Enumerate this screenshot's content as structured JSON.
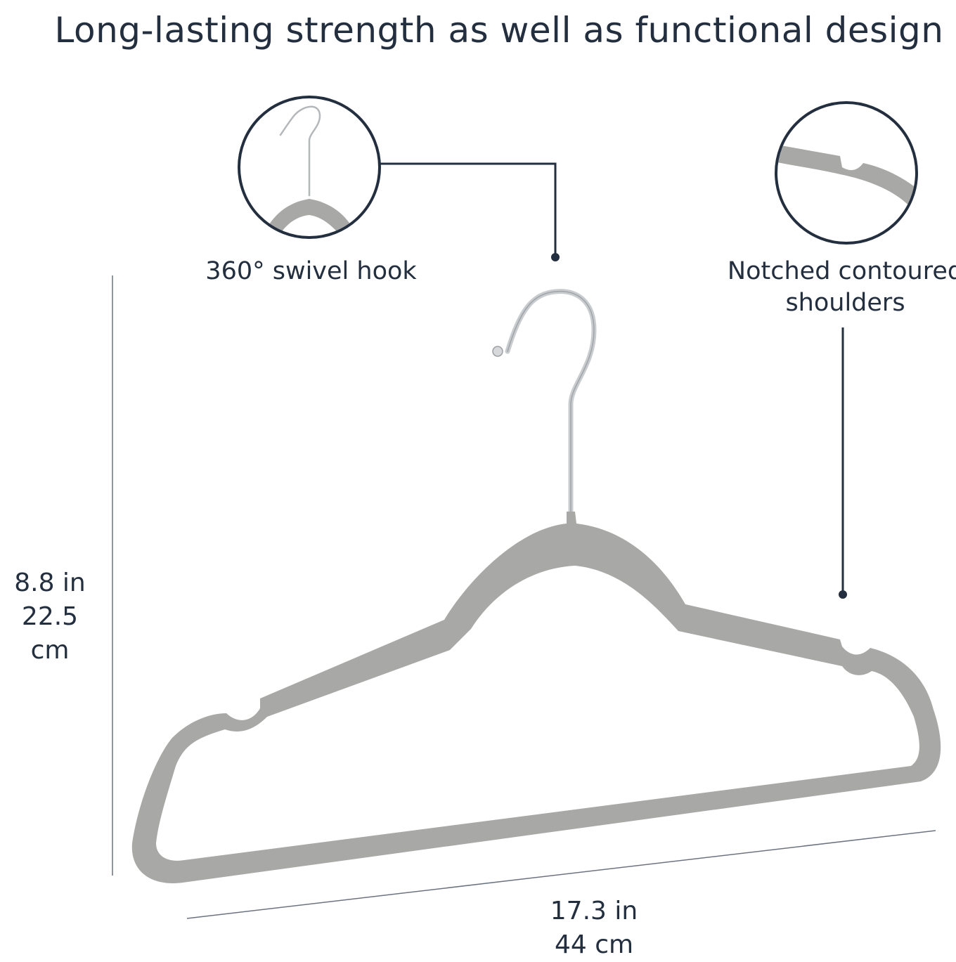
{
  "title": "Long-lasting strength as well as functional design",
  "callouts": {
    "hook": {
      "label": "360° swivel hook"
    },
    "shoulders": {
      "label_line1": "Notched contoured",
      "label_line2": "shoulders"
    }
  },
  "dimensions": {
    "height_in": "8.8 in",
    "height_cm": "22.5 cm",
    "width_in": "17.3 in",
    "width_cm": "44 cm"
  },
  "colors": {
    "text": "#232f3e",
    "hanger": "#a8a8a6",
    "hook_metal": "#c9cccf",
    "lines": "#232f3e"
  }
}
